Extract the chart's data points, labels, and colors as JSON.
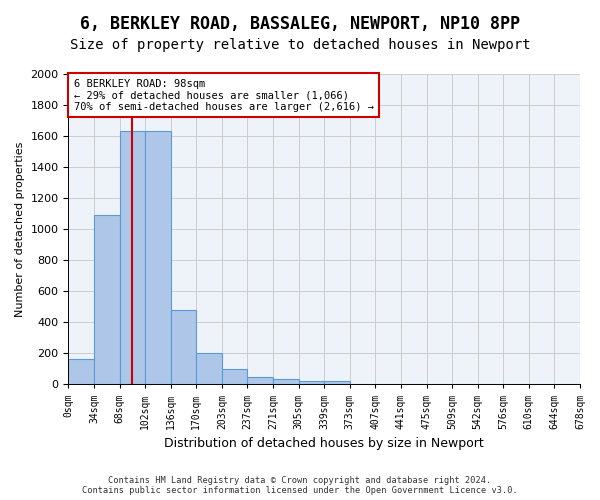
{
  "title1": "6, BERKLEY ROAD, BASSALEG, NEWPORT, NP10 8PP",
  "title2": "Size of property relative to detached houses in Newport",
  "xlabel": "Distribution of detached houses by size in Newport",
  "ylabel": "Number of detached properties",
  "footer1": "Contains HM Land Registry data © Crown copyright and database right 2024.",
  "footer2": "Contains public sector information licensed under the Open Government Licence v3.0.",
  "annotation_title": "6 BERKLEY ROAD: 98sqm",
  "annotation_line2": "← 29% of detached houses are smaller (1,066)",
  "annotation_line3": "70% of semi-detached houses are larger (2,616) →",
  "bar_values": [
    165,
    1090,
    1630,
    1630,
    480,
    200,
    100,
    45,
    35,
    22,
    22,
    0,
    0,
    0,
    0,
    0,
    0,
    0,
    0,
    0
  ],
  "bin_labels": [
    "0sqm",
    "34sqm",
    "68sqm",
    "102sqm",
    "136sqm",
    "170sqm",
    "203sqm",
    "237sqm",
    "271sqm",
    "305sqm",
    "339sqm",
    "373sqm",
    "407sqm",
    "441sqm",
    "475sqm",
    "509sqm",
    "542sqm",
    "576sqm",
    "610sqm",
    "644sqm",
    "678sqm"
  ],
  "bar_color": "#aec6e8",
  "bar_edge_color": "#5b9bd5",
  "property_line_x": 2.5,
  "ylim": [
    0,
    2000
  ],
  "yticks": [
    0,
    200,
    400,
    600,
    800,
    1000,
    1200,
    1400,
    1600,
    1800,
    2000
  ],
  "grid_color": "#cccccc",
  "bg_color": "#eef3fa",
  "annotation_box_color": "#ffffff",
  "annotation_border_color": "#cc0000",
  "title1_fontsize": 12,
  "title2_fontsize": 10
}
